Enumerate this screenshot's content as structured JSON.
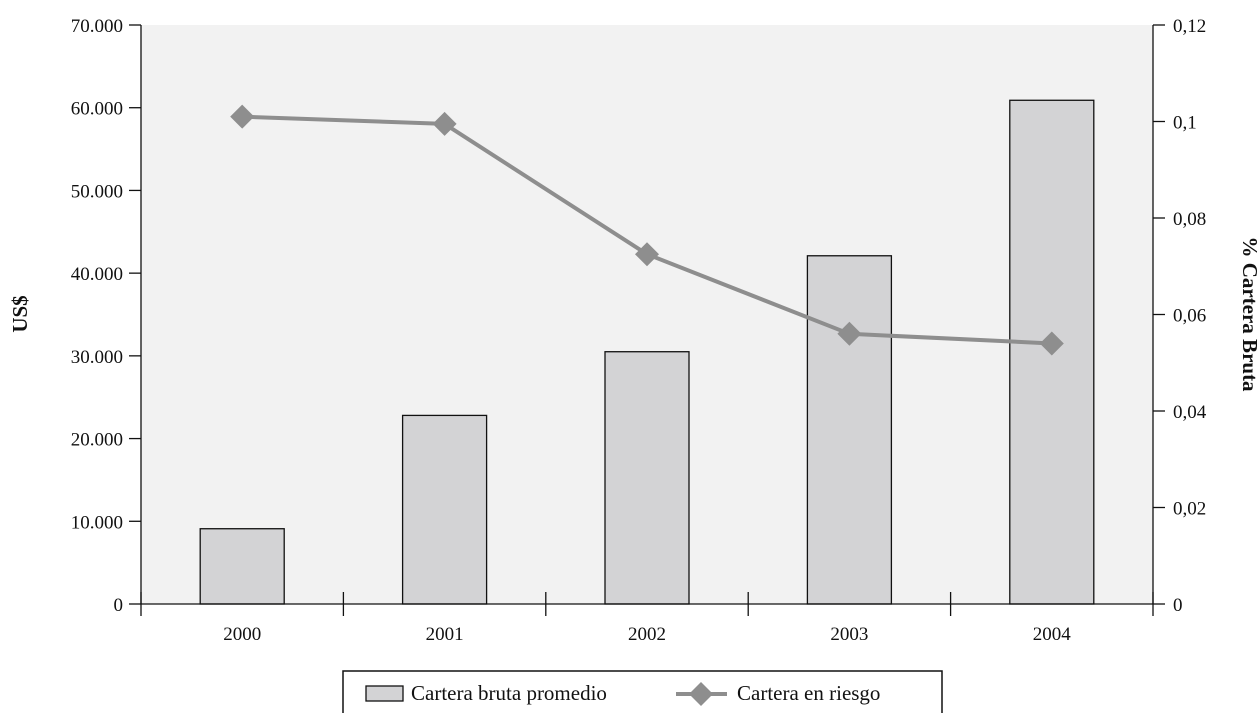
{
  "chart_data": {
    "type": "bar",
    "categories": [
      "2000",
      "2001",
      "2002",
      "2003",
      "2004"
    ],
    "series": [
      {
        "name": "Cartera bruta promedio",
        "type": "bar",
        "axis": "left",
        "values": [
          9100,
          22800,
          30500,
          42100,
          60900
        ],
        "color": "#d3d3d5"
      },
      {
        "name": "Cartera en riesgo",
        "type": "line",
        "axis": "right",
        "marker": "diamond",
        "values": [
          0.101,
          0.0995,
          0.0725,
          0.056,
          0.054
        ],
        "color": "#8e8e8e"
      }
    ],
    "y_left": {
      "label": "US$",
      "ylim": [
        0,
        70000
      ],
      "ticks": [
        0,
        10000,
        20000,
        30000,
        40000,
        50000,
        60000,
        70000
      ],
      "tick_labels": [
        "0",
        "10.000",
        "20.000",
        "30.000",
        "40.000",
        "50.000",
        "60.000",
        "70.000"
      ]
    },
    "y_right": {
      "label": "% Cartera Bruta",
      "ylim": [
        0,
        0.12
      ],
      "ticks": [
        0,
        0.02,
        0.04,
        0.06,
        0.08,
        0.1,
        0.12
      ],
      "tick_labels": [
        "0",
        "0,02",
        "0,04",
        "0,06",
        "0,08",
        "0,1",
        "0,12"
      ]
    },
    "grid": false,
    "legend_position": "bottom",
    "plot_background": "#f2f2f2"
  }
}
